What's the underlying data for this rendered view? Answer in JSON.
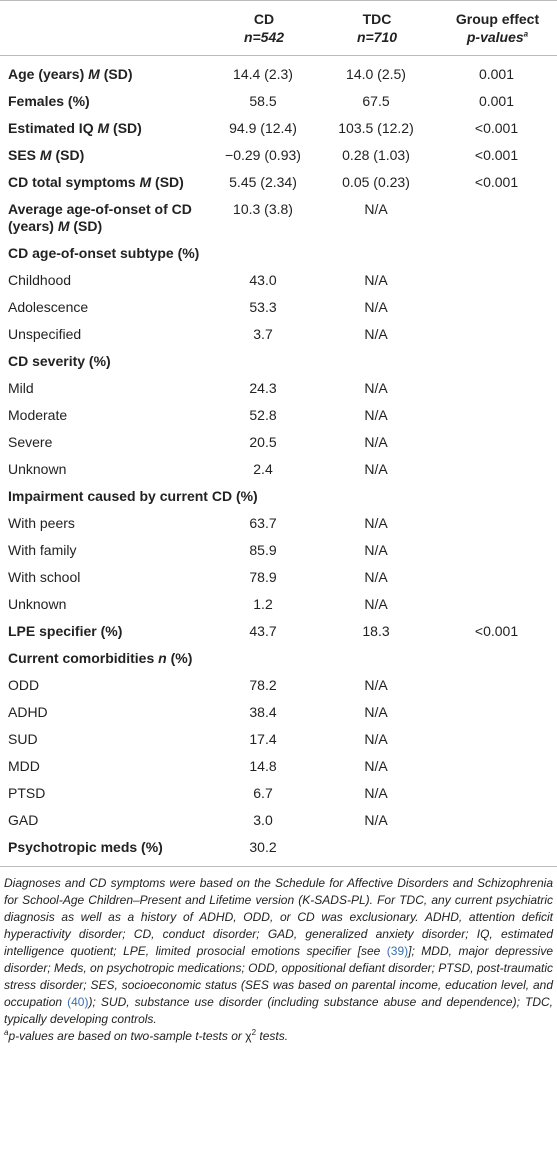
{
  "table": {
    "header": {
      "columns": [
        [
          "CD",
          "n=542"
        ],
        [
          "TDC",
          "n=710"
        ],
        [
          "Group effect",
          "p-values",
          "a"
        ]
      ]
    },
    "rows": [
      {
        "label": [
          "Age (years)",
          "M",
          "(SD)"
        ],
        "values": [
          "14.4 (2.3)",
          "14.0 (2.5)",
          "0.001"
        ]
      },
      {
        "label": "Females (%)",
        "values": [
          "58.5",
          "67.5",
          "0.001"
        ]
      },
      {
        "label": [
          "Estimated IQ",
          "M",
          "(SD)"
        ],
        "values": [
          "94.9 (12.4)",
          "103.5 (12.2)",
          "<0.001"
        ]
      },
      {
        "label": [
          "SES",
          "M",
          "(SD)"
        ],
        "values": [
          "−0.29 (0.93)",
          "0.28 (1.03)",
          "<0.001"
        ]
      },
      {
        "label": [
          "CD total symptoms",
          "M",
          "(SD)"
        ],
        "values": [
          "5.45 (2.34)",
          "0.05 (0.23)",
          "<0.001"
        ]
      },
      {
        "label": [
          "Average age-of-onset of CD (years)",
          "M",
          "(SD)"
        ],
        "values": [
          "10.3 (3.8)",
          "N/A"
        ]
      },
      {
        "label": "CD age-of-onset subtype (%)",
        "items": [
          {
            "label": "Childhood",
            "values": [
              "43.0",
              "N/A"
            ]
          },
          {
            "label": "Adolescence",
            "values": [
              "53.3",
              "N/A"
            ]
          },
          {
            "label": "Unspecified",
            "values": [
              "3.7",
              "N/A"
            ]
          }
        ]
      },
      {
        "label": "CD severity (%)",
        "items": [
          {
            "label": "Mild",
            "values": [
              "24.3",
              "N/A"
            ]
          },
          {
            "label": "Moderate",
            "values": [
              "52.8",
              "N/A"
            ]
          },
          {
            "label": "Severe",
            "values": [
              "20.5",
              "N/A"
            ]
          },
          {
            "label": "Unknown",
            "values": [
              "2.4",
              "N/A"
            ]
          }
        ]
      },
      {
        "label": "Impairment caused by current CD (%)",
        "items": [
          {
            "label": "With peers",
            "values": [
              "63.7",
              "N/A"
            ]
          },
          {
            "label": "With family",
            "values": [
              "85.9",
              "N/A"
            ]
          },
          {
            "label": "With school",
            "values": [
              "78.9",
              "N/A"
            ]
          },
          {
            "label": "Unknown",
            "values": [
              "1.2",
              "N/A"
            ]
          }
        ]
      },
      {
        "label": "LPE specifier (%)",
        "values": [
          "43.7",
          "18.3",
          "<0.001"
        ]
      },
      {
        "label": [
          "Current comorbidities",
          "n",
          "(%)"
        ],
        "items": [
          {
            "label": "ODD",
            "values": [
              "78.2",
              "N/A"
            ]
          },
          {
            "label": "ADHD",
            "values": [
              "38.4",
              "N/A"
            ]
          },
          {
            "label": "SUD",
            "values": [
              "17.4",
              "N/A"
            ]
          },
          {
            "label": "MDD",
            "values": [
              "14.8",
              "N/A"
            ]
          },
          {
            "label": "PTSD",
            "values": [
              "6.7",
              "N/A"
            ]
          },
          {
            "label": "GAD",
            "values": [
              "3.0",
              "N/A"
            ]
          }
        ]
      },
      {
        "label": "Psychotropic meds (%)",
        "values": [
          "30.2"
        ]
      }
    ]
  },
  "footnote": {
    "text": [
      "Diagnoses and CD symptoms were based on the Schedule for Affective Disorders and Schizophrenia for School-Age Children–Present and Lifetime version (K-SADS-PL). For TDC, any current psychiatric diagnosis as well as a history of ADHD, ODD, or CD was exclusionary. ADHD, attention deficit hyperactivity disorder; CD, conduct disorder; GAD, generalized anxiety disorder; IQ, estimated intelligence quotient; LPE, limited prosocial emotions specifier [see ",
      "(39)",
      "]; MDD, major depressive disorder; Meds, on psychotropic medications; ODD, oppositional defiant disorder; PTSD, post-traumatic stress disorder; SES, socioeconomic status (SES was based on parental income, education level, and occupation ",
      "(40)",
      "); SUD, substance use disorder (including substance abuse and dependence); TDC, typically developing controls."
    ],
    "note": [
      "a",
      "p-values are based on two-sample t-tests or",
      "χ",
      "2",
      "tests."
    ]
  }
}
